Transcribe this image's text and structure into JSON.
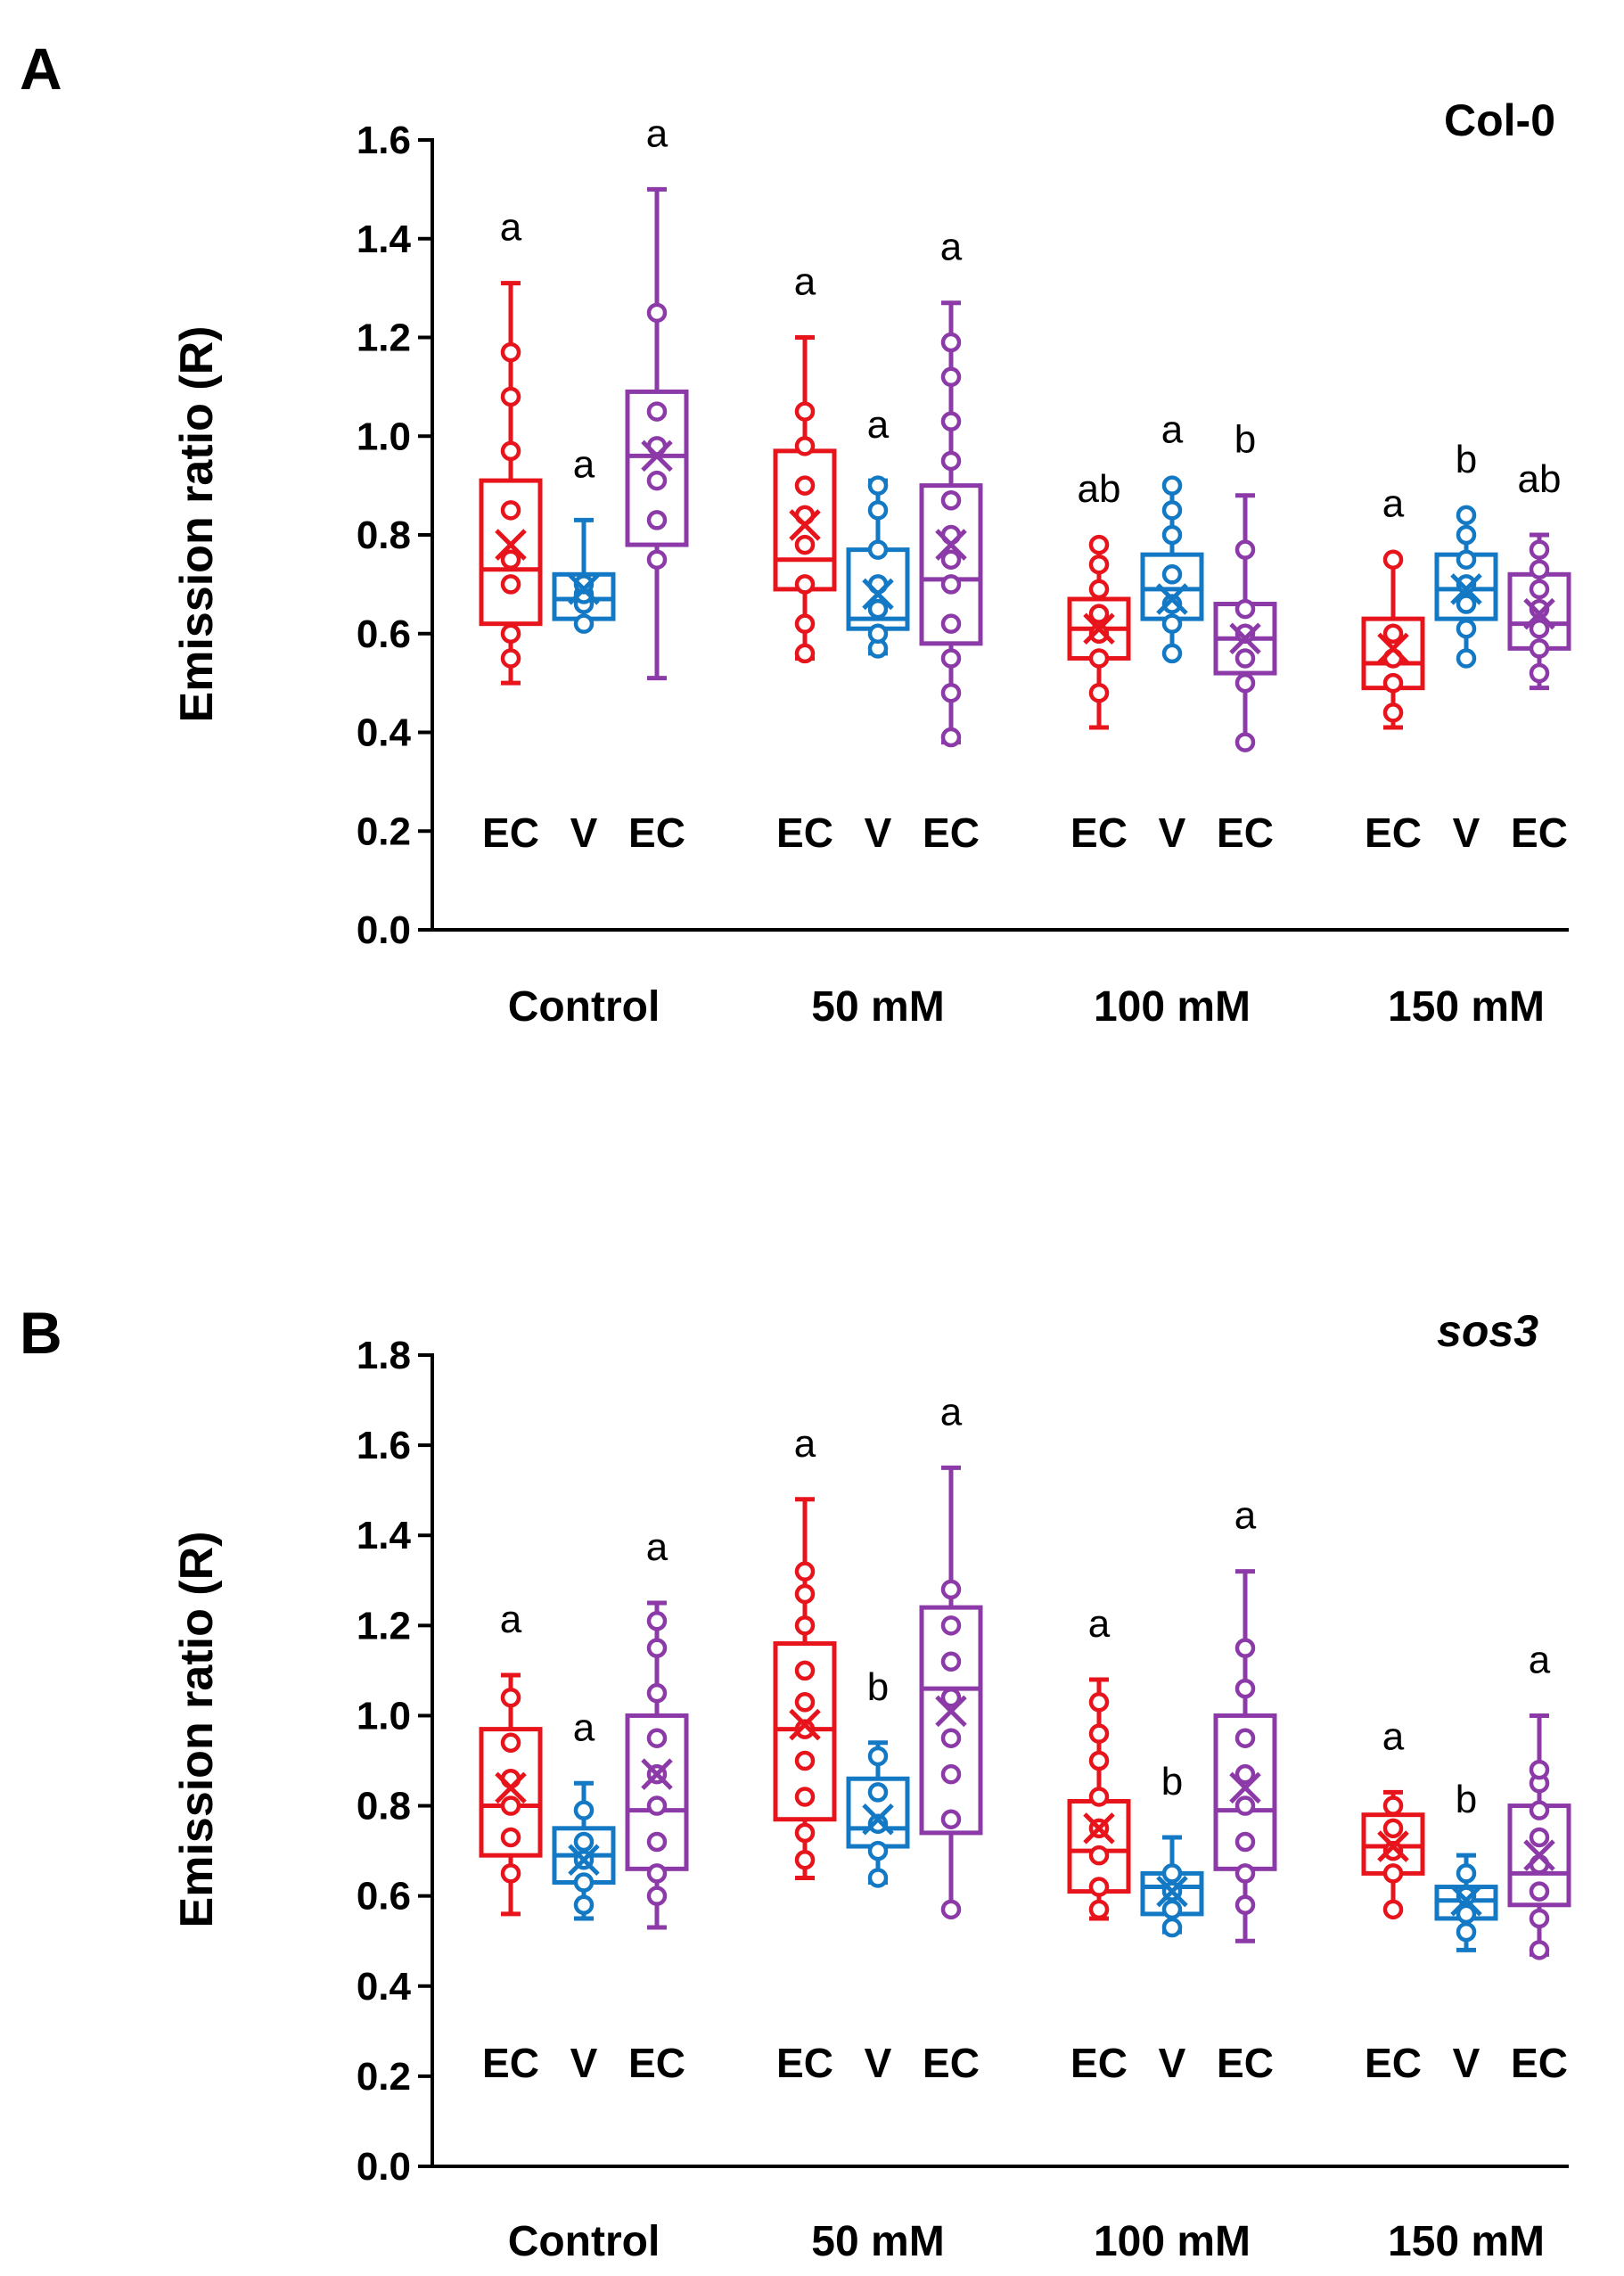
{
  "chart_data": [
    {
      "type": "box",
      "panel": "A",
      "title": "Col-0",
      "title_italic": false,
      "ylabel": "Emission ratio (R)",
      "ylim": [
        0,
        1.6
      ],
      "yticks": [
        "0.0",
        "0.2",
        "0.4",
        "0.6",
        "0.8",
        "1.0",
        "1.2",
        "1.4",
        "1.6"
      ],
      "categories": [
        "Control",
        "50 mM",
        "100 mM",
        "150 mM"
      ],
      "groups": [
        {
          "category": "Control",
          "boxes": [
            {
              "label": "EC",
              "color": "#e8141c",
              "whisker_low": 0.5,
              "q1": 0.62,
              "median": 0.73,
              "q3": 0.91,
              "whisker_high": 1.31,
              "mean": 0.78,
              "points": [
                0.55,
                0.6,
                0.7,
                0.75,
                0.85,
                0.97,
                1.08,
                1.17
              ],
              "letter": "a"
            },
            {
              "label": "V",
              "color": "#1479c4",
              "whisker_low": 0.62,
              "q1": 0.63,
              "median": 0.67,
              "q3": 0.72,
              "whisker_high": 0.83,
              "mean": 0.69,
              "points": [
                0.62,
                0.66,
                0.68,
                0.7
              ],
              "letter": "a"
            },
            {
              "label": "EC",
              "color": "#8c3aa8",
              "whisker_low": 0.51,
              "q1": 0.78,
              "median": 0.96,
              "q3": 1.09,
              "whisker_high": 1.5,
              "mean": 0.96,
              "points": [
                0.75,
                0.83,
                0.91,
                0.98,
                1.05,
                1.25
              ],
              "letter": "a"
            }
          ]
        },
        {
          "category": "50 mM",
          "boxes": [
            {
              "label": "EC",
              "color": "#e8141c",
              "whisker_low": 0.55,
              "q1": 0.69,
              "median": 0.75,
              "q3": 0.97,
              "whisker_high": 1.2,
              "mean": 0.82,
              "points": [
                0.56,
                0.62,
                0.7,
                0.78,
                0.84,
                0.9,
                0.98,
                1.05
              ],
              "letter": "a"
            },
            {
              "label": "V",
              "color": "#1479c4",
              "whisker_low": 0.56,
              "q1": 0.61,
              "median": 0.63,
              "q3": 0.77,
              "whisker_high": 0.91,
              "mean": 0.68,
              "points": [
                0.57,
                0.6,
                0.65,
                0.7,
                0.77,
                0.85,
                0.9
              ],
              "letter": "a"
            },
            {
              "label": "EC",
              "color": "#8c3aa8",
              "whisker_low": 0.38,
              "q1": 0.58,
              "median": 0.71,
              "q3": 0.9,
              "whisker_high": 1.27,
              "mean": 0.78,
              "points": [
                0.39,
                0.48,
                0.55,
                0.62,
                0.7,
                0.75,
                0.8,
                0.87,
                0.95,
                1.03,
                1.12,
                1.19
              ],
              "letter": "a"
            }
          ]
        },
        {
          "category": "100 mM",
          "boxes": [
            {
              "label": "EC",
              "color": "#e8141c",
              "whisker_low": 0.41,
              "q1": 0.55,
              "median": 0.61,
              "q3": 0.67,
              "whisker_high": 0.78,
              "mean": 0.61,
              "points": [
                0.48,
                0.55,
                0.6,
                0.64,
                0.69,
                0.74,
                0.78
              ],
              "letter": "ab"
            },
            {
              "label": "V",
              "color": "#1479c4",
              "whisker_low": 0.56,
              "q1": 0.63,
              "median": 0.69,
              "q3": 0.76,
              "whisker_high": 0.9,
              "mean": 0.67,
              "points": [
                0.56,
                0.62,
                0.66,
                0.72,
                0.8,
                0.85,
                0.9
              ],
              "letter": "a"
            },
            {
              "label": "EC",
              "color": "#8c3aa8",
              "whisker_low": 0.38,
              "q1": 0.52,
              "median": 0.59,
              "q3": 0.66,
              "whisker_high": 0.88,
              "mean": 0.59,
              "points": [
                0.38,
                0.5,
                0.55,
                0.6,
                0.65,
                0.77
              ],
              "letter": "b"
            }
          ]
        },
        {
          "category": "150 mM",
          "boxes": [
            {
              "label": "EC",
              "color": "#e8141c",
              "whisker_low": 0.41,
              "q1": 0.49,
              "median": 0.54,
              "q3": 0.63,
              "whisker_high": 0.75,
              "mean": 0.57,
              "points": [
                0.44,
                0.5,
                0.55,
                0.6,
                0.75
              ],
              "letter": "a"
            },
            {
              "label": "V",
              "color": "#1479c4",
              "whisker_low": 0.55,
              "q1": 0.63,
              "median": 0.69,
              "q3": 0.76,
              "whisker_high": 0.84,
              "mean": 0.69,
              "points": [
                0.55,
                0.61,
                0.66,
                0.7,
                0.75,
                0.8,
                0.84
              ],
              "letter": "b"
            },
            {
              "label": "EC",
              "color": "#8c3aa8",
              "whisker_low": 0.49,
              "q1": 0.57,
              "median": 0.62,
              "q3": 0.72,
              "whisker_high": 0.8,
              "mean": 0.64,
              "points": [
                0.52,
                0.57,
                0.61,
                0.65,
                0.69,
                0.73,
                0.77
              ],
              "letter": "ab"
            }
          ]
        }
      ]
    },
    {
      "type": "box",
      "panel": "B",
      "title": "sos3",
      "title_italic": true,
      "ylabel": "Emission ratio (R)",
      "ylim": [
        0,
        1.8
      ],
      "yticks": [
        "0.0",
        "0.2",
        "0.4",
        "0.6",
        "0.8",
        "1.0",
        "1.2",
        "1.4",
        "1.6",
        "1.8"
      ],
      "categories": [
        "Control",
        "50 mM",
        "100 mM",
        "150 mM"
      ],
      "groups": [
        {
          "category": "Control",
          "boxes": [
            {
              "label": "EC",
              "color": "#e8141c",
              "whisker_low": 0.56,
              "q1": 0.69,
              "median": 0.8,
              "q3": 0.97,
              "whisker_high": 1.09,
              "mean": 0.84,
              "points": [
                0.65,
                0.73,
                0.8,
                0.86,
                0.94,
                1.04
              ],
              "letter": "a"
            },
            {
              "label": "V",
              "color": "#1479c4",
              "whisker_low": 0.55,
              "q1": 0.63,
              "median": 0.69,
              "q3": 0.75,
              "whisker_high": 0.85,
              "mean": 0.68,
              "points": [
                0.58,
                0.63,
                0.68,
                0.72,
                0.79
              ],
              "letter": "a"
            },
            {
              "label": "EC",
              "color": "#8c3aa8",
              "whisker_low": 0.53,
              "q1": 0.66,
              "median": 0.79,
              "q3": 1.0,
              "whisker_high": 1.25,
              "mean": 0.87,
              "points": [
                0.6,
                0.65,
                0.72,
                0.8,
                0.87,
                0.95,
                1.05,
                1.15,
                1.21
              ],
              "letter": "a"
            }
          ]
        },
        {
          "category": "50 mM",
          "boxes": [
            {
              "label": "EC",
              "color": "#e8141c",
              "whisker_low": 0.64,
              "q1": 0.77,
              "median": 0.97,
              "q3": 1.16,
              "whisker_high": 1.48,
              "mean": 0.98,
              "points": [
                0.68,
                0.74,
                0.82,
                0.9,
                0.97,
                1.03,
                1.1,
                1.2,
                1.27,
                1.32
              ],
              "letter": "a"
            },
            {
              "label": "V",
              "color": "#1479c4",
              "whisker_low": 0.63,
              "q1": 0.71,
              "median": 0.75,
              "q3": 0.86,
              "whisker_high": 0.94,
              "mean": 0.77,
              "points": [
                0.64,
                0.7,
                0.76,
                0.83,
                0.91
              ],
              "letter": "b"
            },
            {
              "label": "EC",
              "color": "#8c3aa8",
              "whisker_low": 0.57,
              "q1": 0.74,
              "median": 1.06,
              "q3": 1.24,
              "whisker_high": 1.55,
              "mean": 1.01,
              "points": [
                0.57,
                0.77,
                0.87,
                0.95,
                1.04,
                1.12,
                1.2,
                1.28
              ],
              "letter": "a"
            }
          ]
        },
        {
          "category": "100 mM",
          "boxes": [
            {
              "label": "EC",
              "color": "#e8141c",
              "whisker_low": 0.55,
              "q1": 0.61,
              "median": 0.7,
              "q3": 0.81,
              "whisker_high": 1.08,
              "mean": 0.75,
              "points": [
                0.57,
                0.62,
                0.69,
                0.75,
                0.82,
                0.9,
                0.96,
                1.03
              ],
              "letter": "a"
            },
            {
              "label": "V",
              "color": "#1479c4",
              "whisker_low": 0.52,
              "q1": 0.56,
              "median": 0.62,
              "q3": 0.65,
              "whisker_high": 0.73,
              "mean": 0.61,
              "points": [
                0.53,
                0.57,
                0.61,
                0.65
              ],
              "letter": "b"
            },
            {
              "label": "EC",
              "color": "#8c3aa8",
              "whisker_low": 0.5,
              "q1": 0.66,
              "median": 0.79,
              "q3": 1.0,
              "whisker_high": 1.32,
              "mean": 0.84,
              "points": [
                0.58,
                0.65,
                0.72,
                0.8,
                0.87,
                0.95,
                1.06,
                1.15
              ],
              "letter": "a"
            }
          ]
        },
        {
          "category": "150 mM",
          "boxes": [
            {
              "label": "EC",
              "color": "#e8141c",
              "whisker_low": 0.57,
              "q1": 0.65,
              "median": 0.71,
              "q3": 0.78,
              "whisker_high": 0.83,
              "mean": 0.71,
              "points": [
                0.57,
                0.65,
                0.7,
                0.75,
                0.8
              ],
              "letter": "a"
            },
            {
              "label": "V",
              "color": "#1479c4",
              "whisker_low": 0.48,
              "q1": 0.55,
              "median": 0.59,
              "q3": 0.62,
              "whisker_high": 0.69,
              "mean": 0.59,
              "points": [
                0.52,
                0.56,
                0.6,
                0.65
              ],
              "letter": "b"
            },
            {
              "label": "EC",
              "color": "#8c3aa8",
              "whisker_low": 0.47,
              "q1": 0.58,
              "median": 0.65,
              "q3": 0.8,
              "whisker_high": 1.0,
              "mean": 0.69,
              "points": [
                0.48,
                0.55,
                0.61,
                0.67,
                0.73,
                0.79,
                0.85,
                0.88
              ],
              "letter": "a"
            }
          ]
        }
      ]
    }
  ]
}
